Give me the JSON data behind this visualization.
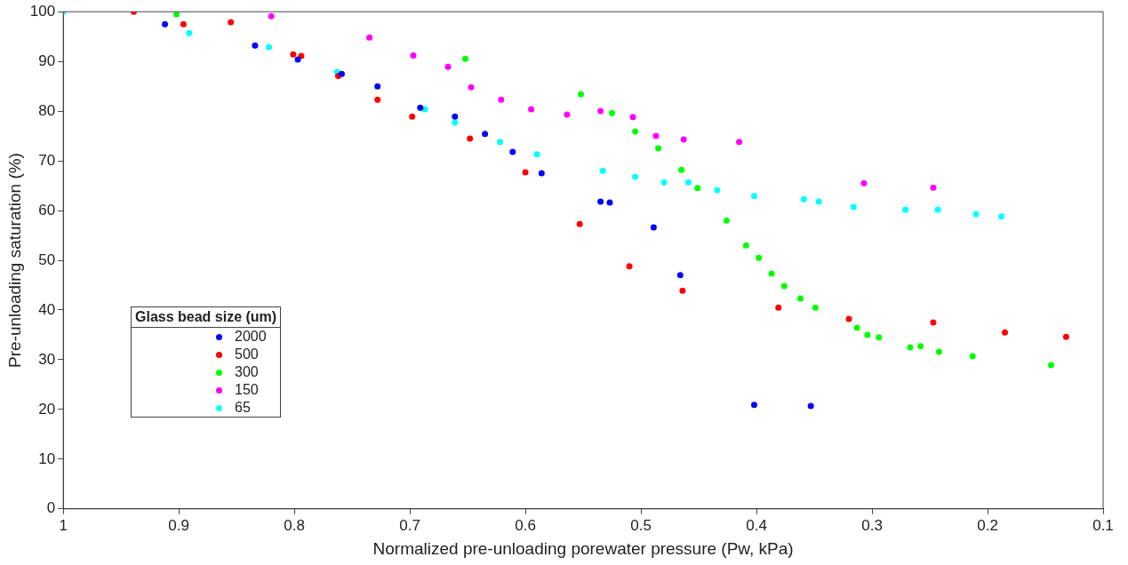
{
  "chart_data": {
    "type": "scatter",
    "xlabel": "Normalized pre-unloading porewater pressure (Pw, kPa)",
    "ylabel": "Pre-unloading saturation (%)",
    "legend_title": "Glass bead size (um)",
    "legend": "bottom left",
    "grid": false,
    "marker": "circle",
    "xlim": [
      1,
      0.1
    ],
    "xticks": [
      1,
      0.9,
      0.8,
      0.7,
      0.6,
      0.5,
      0.4,
      0.3,
      0.2,
      0.1
    ],
    "ylim": [
      0,
      100
    ],
    "yticks": [
      0,
      10,
      20,
      30,
      40,
      50,
      60,
      70,
      80,
      90,
      100
    ],
    "series": [
      {
        "name": "2000",
        "color": "#0000ff",
        "x": [
          0.912,
          0.834,
          0.797,
          0.759,
          0.728,
          0.691,
          0.661,
          0.635,
          0.611,
          0.586,
          0.535,
          0.527,
          0.489,
          0.466,
          0.402,
          0.353
        ],
        "values": [
          97.5,
          93.2,
          90.4,
          87.5,
          85.0,
          80.7,
          78.9,
          75.4,
          71.8,
          67.5,
          61.8,
          61.6,
          56.6,
          47.0,
          20.9,
          20.7
        ]
      },
      {
        "name": "500",
        "color": "#ff0000",
        "x": [
          0.939,
          0.896,
          0.855,
          0.801,
          0.794,
          0.762,
          0.728,
          0.698,
          0.648,
          0.6,
          0.553,
          0.51,
          0.464,
          0.381,
          0.32,
          0.247,
          0.185,
          0.132
        ],
        "values": [
          100,
          97.5,
          97.9,
          91.4,
          91.1,
          87.1,
          82.3,
          78.9,
          74.5,
          67.7,
          57.3,
          48.8,
          43.9,
          40.5,
          38.2,
          37.5,
          35.5,
          34.6
        ]
      },
      {
        "name": "300",
        "color": "#00ff00",
        "x": [
          0.902,
          0.652,
          0.552,
          0.525,
          0.505,
          0.485,
          0.465,
          0.451,
          0.426,
          0.409,
          0.398,
          0.387,
          0.376,
          0.362,
          0.349,
          0.313,
          0.304,
          0.294,
          0.267,
          0.258,
          0.242,
          0.213,
          0.145
        ],
        "values": [
          99.5,
          90.5,
          83.4,
          79.6,
          75.9,
          72.5,
          68.2,
          64.5,
          58.0,
          53.0,
          50.5,
          47.3,
          44.8,
          42.3,
          40.5,
          36.4,
          35.0,
          34.5,
          32.5,
          32.7,
          31.6,
          30.7,
          28.9
        ]
      },
      {
        "name": "150",
        "color": "#ff00ff",
        "x": [
          0.82,
          0.735,
          0.697,
          0.667,
          0.647,
          0.621,
          0.595,
          0.564,
          0.535,
          0.507,
          0.487,
          0.463,
          0.415,
          0.307,
          0.247
        ],
        "values": [
          99.1,
          94.8,
          91.2,
          88.9,
          84.8,
          82.3,
          80.4,
          79.3,
          80.0,
          78.8,
          75.0,
          74.3,
          73.8,
          65.5,
          64.6
        ]
      },
      {
        "name": "65",
        "color": "#00ffff",
        "x": [
          1,
          0.891,
          0.822,
          0.763,
          0.687,
          0.661,
          0.622,
          0.59,
          0.533,
          0.505,
          0.48,
          0.459,
          0.434,
          0.402,
          0.359,
          0.346,
          0.316,
          0.271,
          0.243,
          0.21,
          0.188
        ],
        "values": [
          100,
          95.7,
          92.9,
          87.9,
          80.4,
          77.7,
          73.8,
          71.3,
          68.0,
          66.8,
          65.7,
          65.7,
          64.1,
          62.9,
          62.3,
          61.8,
          60.7,
          60.2,
          60.2,
          59.3,
          58.8
        ]
      }
    ]
  }
}
